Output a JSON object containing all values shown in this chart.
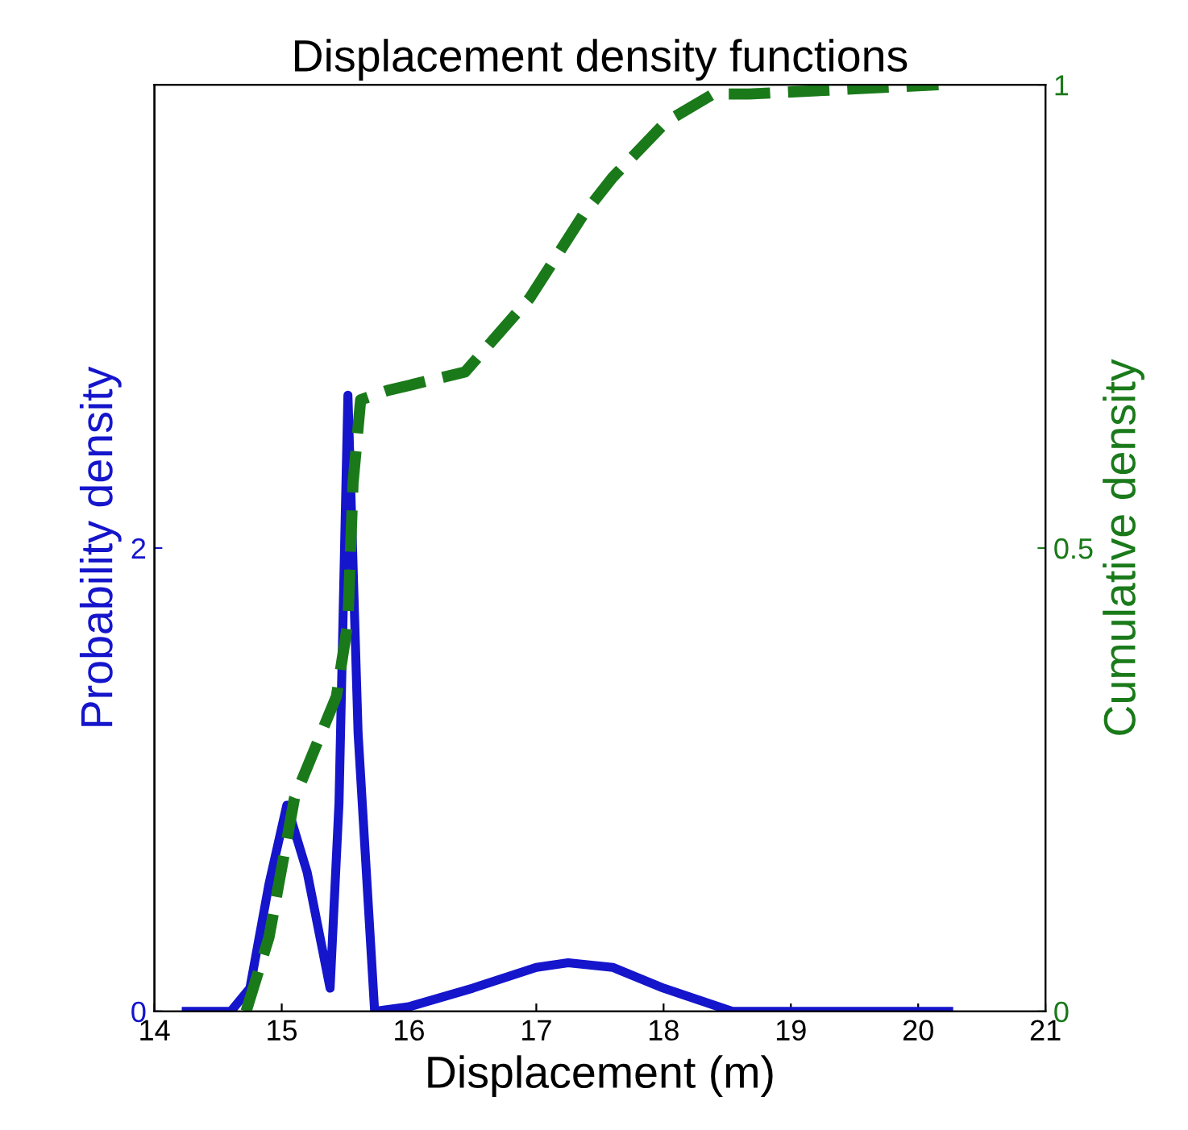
{
  "chart_data": {
    "type": "line",
    "title": "Displacement density functions",
    "xlabel": "Displacement (m)",
    "ylabel": "Probability density",
    "y2label": "Cumulative density",
    "xlim": [
      14,
      21
    ],
    "xticks": [
      14,
      15,
      16,
      17,
      18,
      19,
      20,
      21
    ],
    "ylim": [
      0,
      4
    ],
    "yticks": [
      0,
      2
    ],
    "y2lim": [
      0,
      1
    ],
    "y2ticks": [
      0,
      0.5,
      1
    ],
    "grid": false,
    "legend": false,
    "series": [
      {
        "color": "#1515cc",
        "line_style": "solid",
        "x": [
          14.25,
          14.6,
          14.75,
          14.9,
          15.04,
          15.2,
          15.38,
          15.45,
          15.52,
          15.6,
          15.73,
          16.0,
          16.5,
          17.0,
          17.25,
          17.6,
          18.0,
          18.54,
          19.0,
          20.24
        ],
        "values": [
          0,
          0,
          0.1,
          0.55,
          0.89,
          0.6,
          0.1,
          0.9,
          2.66,
          1.2,
          0,
          0.02,
          0.1,
          0.19,
          0.21,
          0.19,
          0.1,
          0,
          0,
          0
        ]
      },
      {
        "color": "#1a7a1a",
        "line_style": "dashed",
        "axis": "y2",
        "x": [
          14.72,
          14.9,
          15.1,
          15.43,
          15.52,
          15.56,
          15.62,
          15.83,
          16.44,
          16.95,
          17.37,
          17.6,
          18.02,
          18.39,
          18.67,
          20.16
        ],
        "values": [
          0,
          0.08,
          0.23,
          0.34,
          0.42,
          0.57,
          0.66,
          0.67,
          0.69,
          0.77,
          0.86,
          0.9,
          0.96,
          0.99,
          0.99,
          1.0
        ]
      }
    ]
  }
}
